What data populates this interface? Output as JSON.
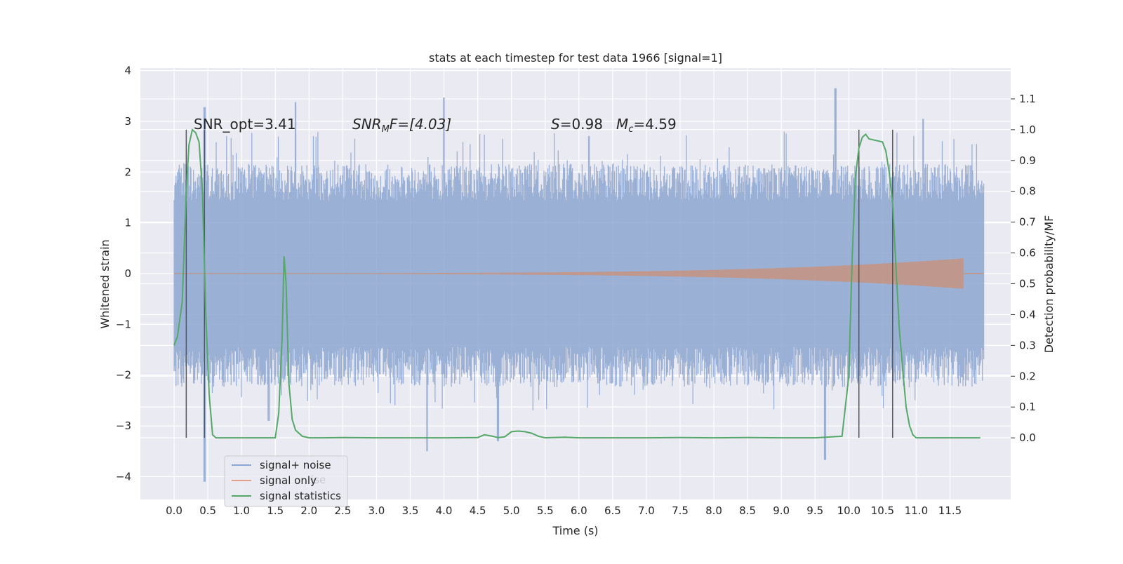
{
  "chart_data": {
    "type": "line",
    "title": "stats at each timestep for test data 1966 [signal=1]",
    "xlabel": "Time (s)",
    "ylabel_left": "Whitened strain",
    "ylabel_right": "Detection probability/MF",
    "xlim": [
      -0.5,
      12.4
    ],
    "ylim_left": [
      -4.45,
      4.05
    ],
    "ylim_right": [
      -0.2,
      1.2
    ],
    "grid": true,
    "legend_position": "lower-left",
    "x_ticks": [
      "0.0",
      "0.5",
      "1.0",
      "1.5",
      "2.0",
      "2.5",
      "3.0",
      "3.5",
      "4.0",
      "4.5",
      "5.0",
      "5.5",
      "6.0",
      "6.5",
      "7.0",
      "7.5",
      "8.0",
      "8.5",
      "9.0",
      "9.5",
      "10.0",
      "10.5",
      "11.0",
      "11.5"
    ],
    "y_ticks_left": [
      "4",
      "3",
      "2",
      "1",
      "0",
      "−1",
      "−2",
      "−3",
      "−4"
    ],
    "y_ticks_right": [
      "1.1",
      "1.0",
      "0.9",
      "0.8",
      "0.7",
      "0.6",
      "0.5",
      "0.4",
      "0.3",
      "0.2",
      "0.1",
      "0.0"
    ],
    "annotations": {
      "snr_opt": "SNR_opt=3.41",
      "snr_mf_italic": "SNR",
      "snr_mf_sub": "M",
      "snr_mf_rest": "F=[4.03]",
      "s_italic": "S",
      "s_rest": "=0.98",
      "mc_italic": "M",
      "mc_sub": "c",
      "mc_rest": "=4.59"
    },
    "noise_envelope": {
      "description_values": "approx symmetric band of whitened strain",
      "x_range": [
        0.0,
        12.0
      ],
      "typical_abs": 1.6,
      "peaks_high": [
        [
          0.45,
          3.28
        ],
        [
          1.8,
          3.38
        ],
        [
          4.0,
          3.47
        ],
        [
          9.8,
          3.65
        ],
        [
          11.1,
          3.05
        ]
      ],
      "peaks_low": [
        [
          0.45,
          -4.1
        ],
        [
          3.75,
          -3.5
        ],
        [
          4.8,
          -3.3
        ],
        [
          9.65,
          -3.67
        ],
        [
          1.4,
          -2.9
        ]
      ]
    },
    "signal_only": {
      "x_range": [
        0.0,
        11.7
      ],
      "amplitude_start": 0.01,
      "amplitude_end": 0.3
    },
    "series": [
      {
        "name": "signal statistics",
        "color": "#55a868",
        "x": [
          0.0,
          0.05,
          0.12,
          0.18,
          0.22,
          0.27,
          0.32,
          0.37,
          0.42,
          0.47,
          0.52,
          0.57,
          0.62,
          0.7,
          0.9,
          1.2,
          1.5,
          1.55,
          1.6,
          1.63,
          1.66,
          1.7,
          1.75,
          1.8,
          1.9,
          2.0,
          2.2,
          2.5,
          3.0,
          4.0,
          4.5,
          4.6,
          4.7,
          4.8,
          4.9,
          5.0,
          5.1,
          5.2,
          5.3,
          5.4,
          5.5,
          5.6,
          5.8,
          6.0,
          6.5,
          7.0,
          7.5,
          8.0,
          8.5,
          9.0,
          9.5,
          9.9,
          10.0,
          10.05,
          10.1,
          10.15,
          10.2,
          10.25,
          10.3,
          10.4,
          10.5,
          10.55,
          10.6,
          10.65,
          10.7,
          10.75,
          10.8,
          10.85,
          10.9,
          10.95,
          11.0,
          11.05,
          11.1,
          11.2,
          11.5,
          11.95
        ],
        "values": [
          0.3,
          0.33,
          0.44,
          0.8,
          0.95,
          1.0,
          0.99,
          0.96,
          0.8,
          0.4,
          0.14,
          0.01,
          0.0,
          0.0,
          0.0,
          0.0,
          0.0,
          0.08,
          0.32,
          0.59,
          0.5,
          0.18,
          0.06,
          0.025,
          0.005,
          0.0,
          0.0,
          0.001,
          0.0,
          0.0,
          0.001,
          0.01,
          0.006,
          0.001,
          0.003,
          0.02,
          0.022,
          0.02,
          0.015,
          0.005,
          0.0,
          0.001,
          0.002,
          0.0,
          0.0,
          0.0,
          0.001,
          0.0,
          0.001,
          0.0,
          0.0,
          0.005,
          0.2,
          0.58,
          0.85,
          0.94,
          0.975,
          0.985,
          0.97,
          0.965,
          0.96,
          0.93,
          0.86,
          0.76,
          0.55,
          0.35,
          0.22,
          0.1,
          0.04,
          0.01,
          0.0,
          0.0,
          0.0,
          0.0,
          0.0,
          0.0
        ]
      }
    ],
    "vertical_markers": [
      0.18,
      0.45,
      10.15,
      10.65
    ],
    "legend": [
      {
        "label": "signal+ noise",
        "color": "#8da0cb"
      },
      {
        "label": "signal only",
        "color": "#e1a08b"
      },
      {
        "label": "signal statistics",
        "color": "#55a868"
      }
    ],
    "legend_ghost_text": "ise",
    "colors": {
      "background": "#eaeaf2",
      "grid": "#ffffff",
      "noise": "#8da6d0",
      "signal": "#dd8452",
      "stats": "#55a868",
      "marker": "#555555"
    }
  }
}
